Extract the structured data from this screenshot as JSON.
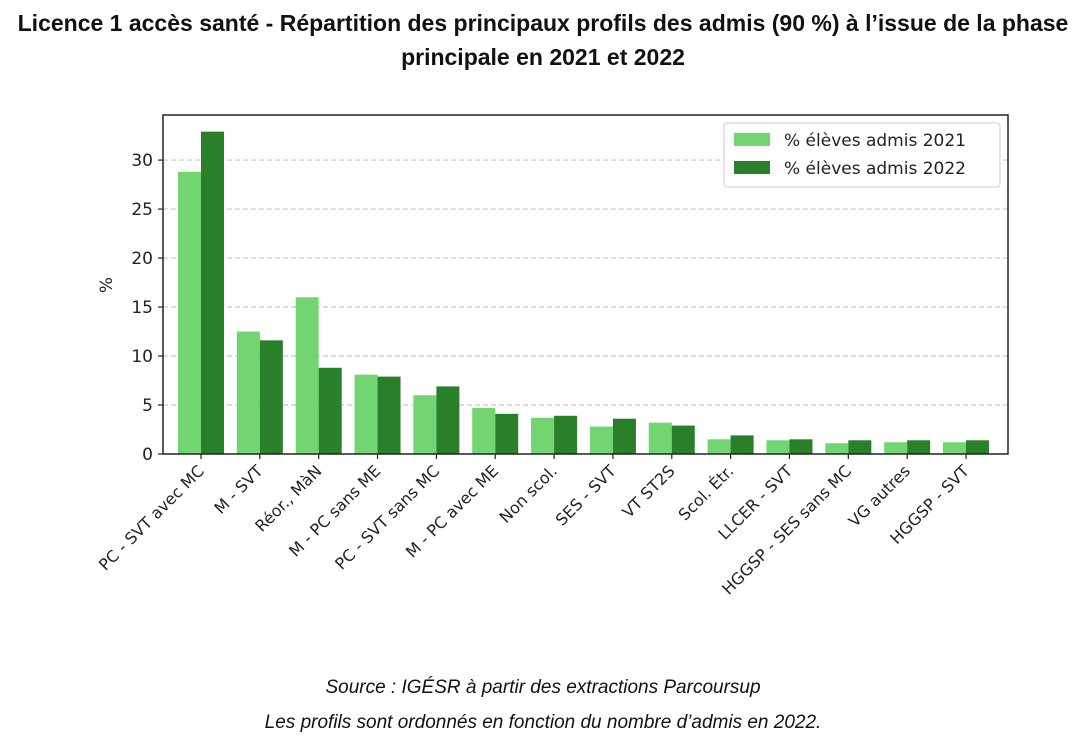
{
  "title": "Licence 1 accès santé - Répartition des principaux profils des admis (90 %) à l’issue de la phase principale en 2021 et 2022",
  "source": "Source : IGÉSR à partir des extractions Parcoursup",
  "note": "Les profils sont ordonnés en fonction du nombre d’admis en 2022.",
  "chart_data": {
    "type": "bar",
    "title": "",
    "xlabel": "",
    "ylabel": "%",
    "ylim": [
      0,
      34.6
    ],
    "yticks": [
      0,
      5,
      10,
      15,
      20,
      25,
      30
    ],
    "grid": "horizontal dashed",
    "legend_position": "top-right",
    "categories": [
      "PC - SVT avec MC",
      "M - SVT",
      "Réor., MàN",
      "M - PC sans ME",
      "PC - SVT sans MC",
      "M - PC avec ME",
      "Non scol.",
      "SES - SVT",
      "VT ST2S",
      "Scol. Étr.",
      "LLCER - SVT",
      "HGGSP - SES sans MC",
      "VG autres",
      "HGGSP - SVT"
    ],
    "series": [
      {
        "name": "% élèves admis 2021",
        "color": "#72d572",
        "values": [
          28.8,
          12.5,
          16.0,
          8.1,
          6.0,
          4.7,
          3.7,
          2.8,
          3.2,
          1.5,
          1.4,
          1.1,
          1.2,
          1.2
        ]
      },
      {
        "name": "% élèves admis 2022",
        "color": "#2a7f2a",
        "values": [
          32.9,
          11.6,
          8.8,
          7.9,
          6.9,
          4.1,
          3.9,
          3.6,
          2.9,
          1.9,
          1.5,
          1.4,
          1.4,
          1.4
        ]
      }
    ]
  }
}
